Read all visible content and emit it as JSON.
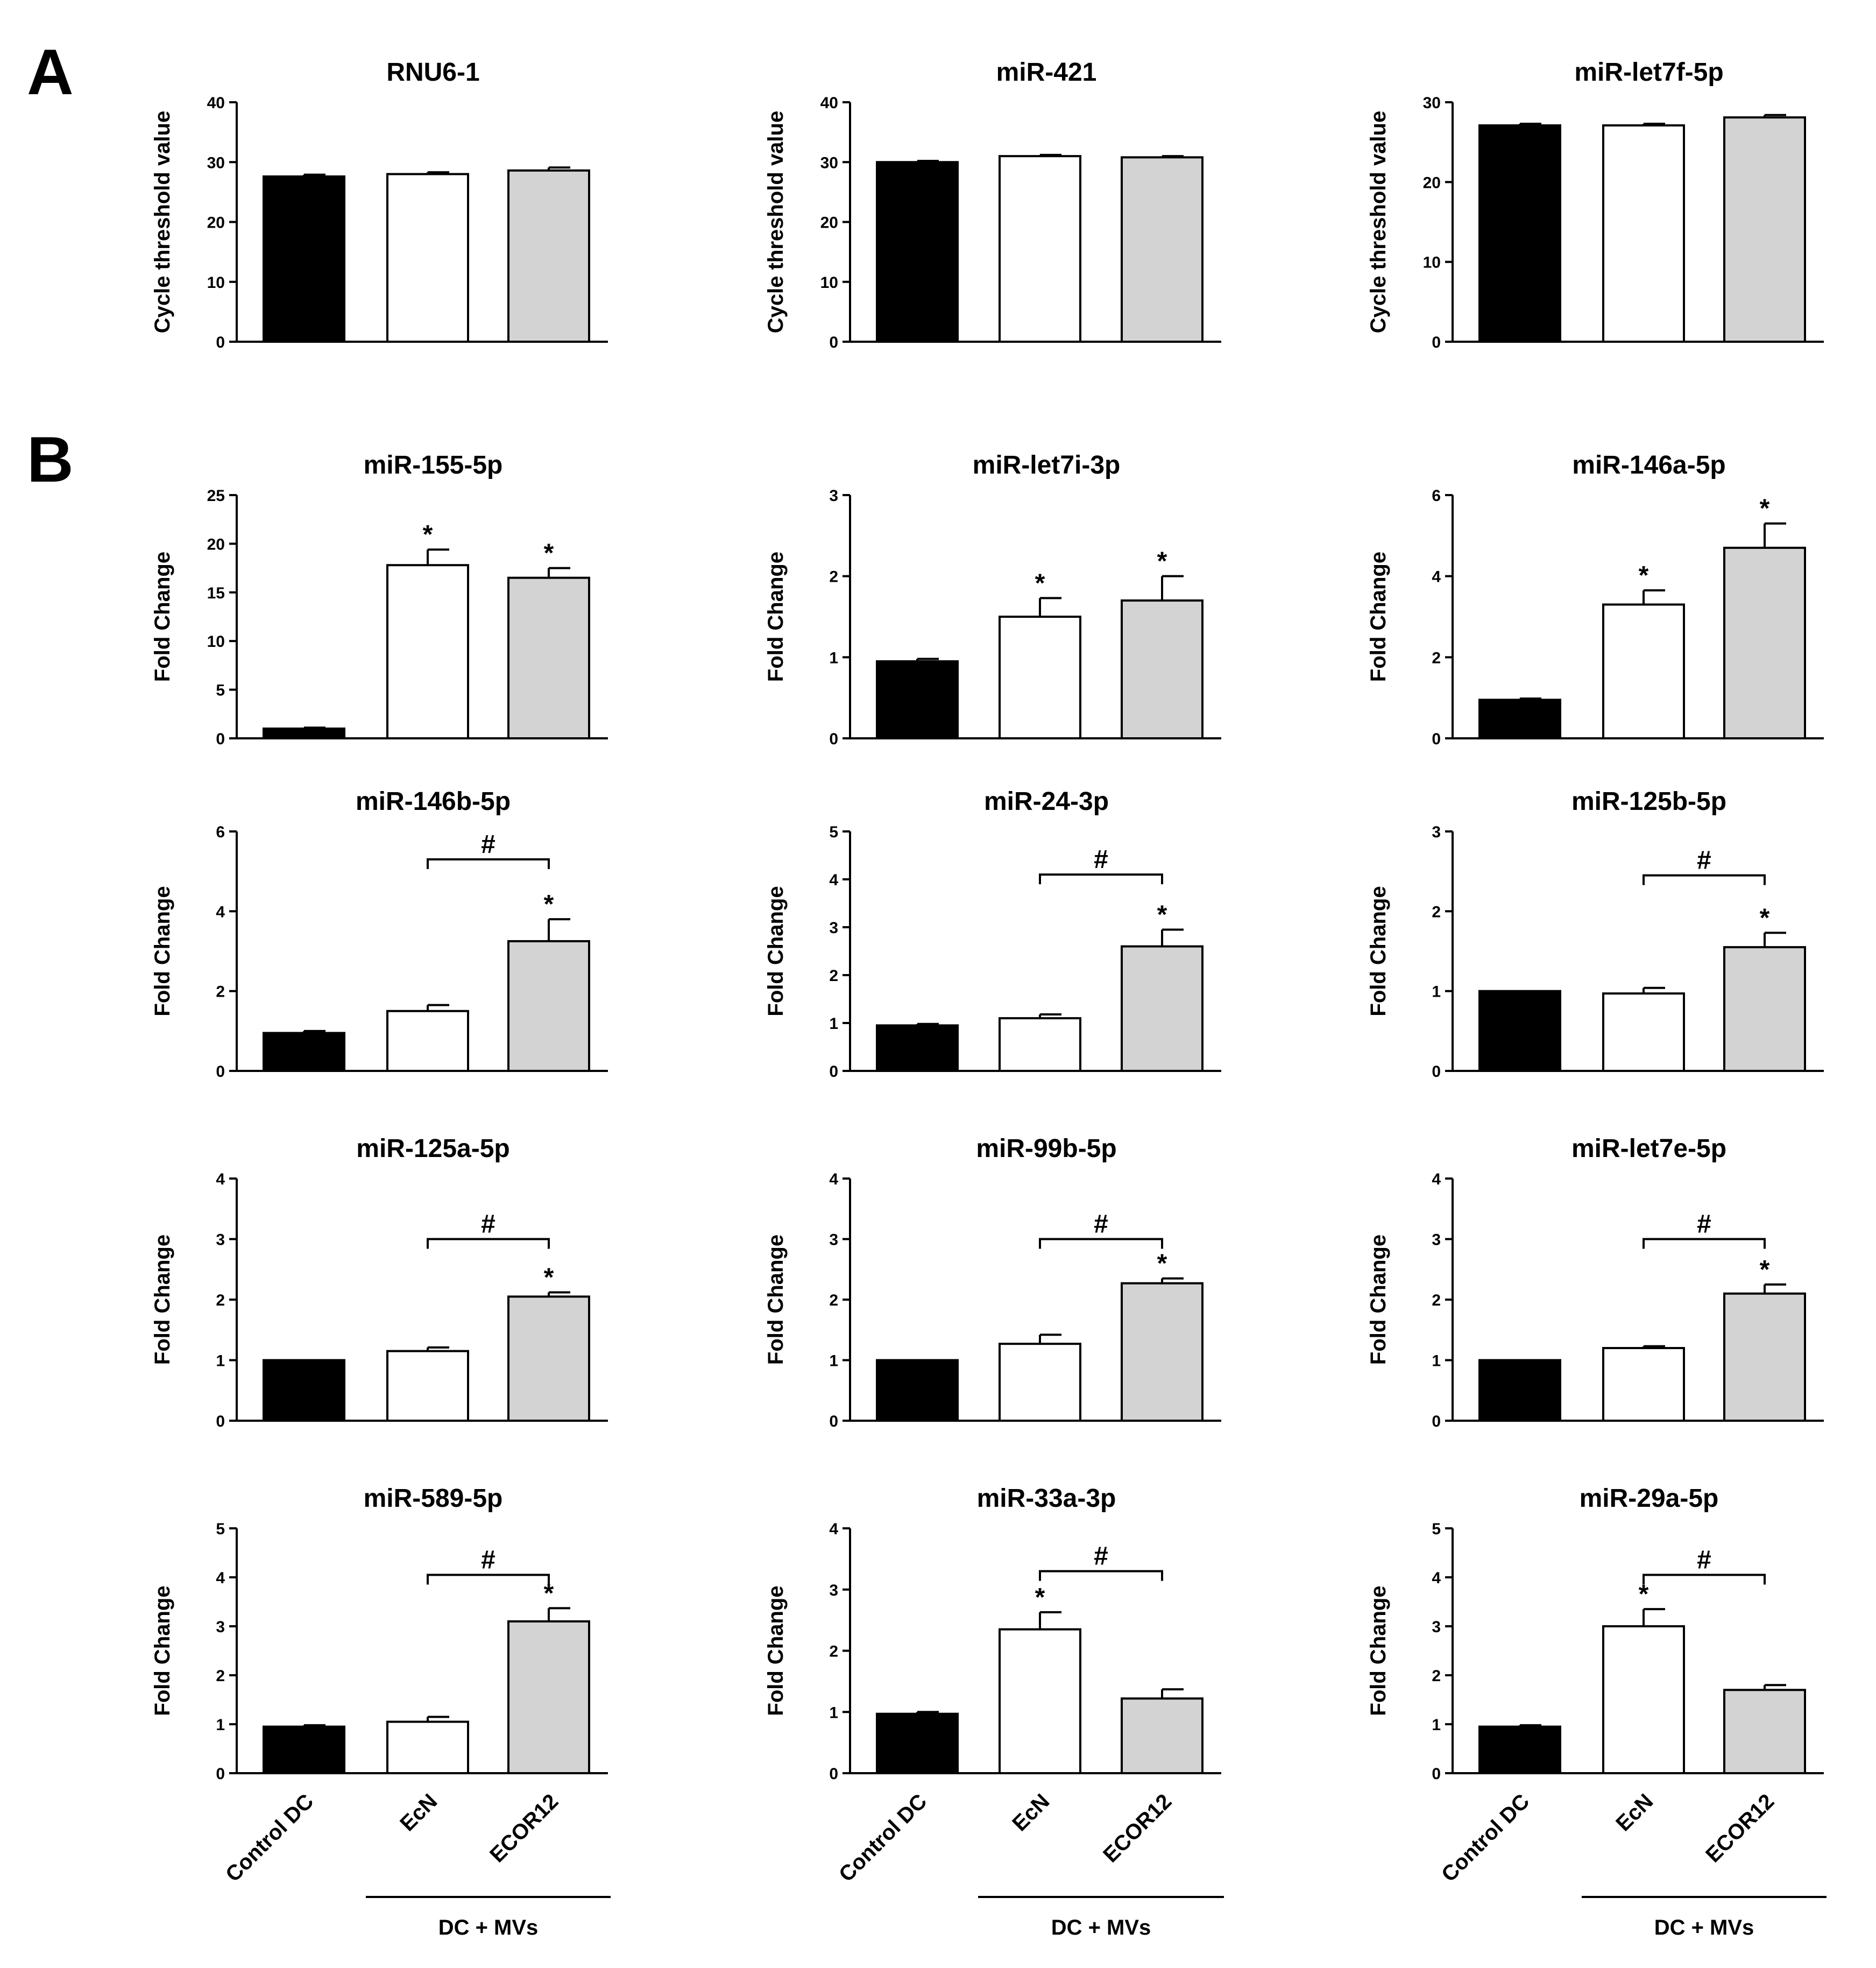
{
  "panel_labels": [
    "A",
    "B"
  ],
  "categories": [
    "Control DC",
    "EcN",
    "ECOR12"
  ],
  "group_label": "DC + MVs",
  "colors": {
    "control": "#000000",
    "ecn": "#ffffff",
    "ecor12": "#d3d3d3"
  },
  "chart_data": [
    {
      "type": "bar",
      "title": "RNU6-1",
      "ylabel": "Cycle threshold value",
      "categories": [
        "Control DC",
        "EcN",
        "ECOR12"
      ],
      "values": [
        27.6,
        28.0,
        28.6
      ],
      "errors": [
        0.3,
        0.3,
        0.5
      ],
      "ylim": [
        0,
        40
      ],
      "yticks": [
        0,
        10,
        20,
        30,
        40
      ],
      "sig": [],
      "bracket": null
    },
    {
      "type": "bar",
      "title": "miR-421",
      "ylabel": "Cycle threshold value",
      "categories": [
        "Control DC",
        "EcN",
        "ECOR12"
      ],
      "values": [
        30.0,
        31.0,
        30.8
      ],
      "errors": [
        0.2,
        0.2,
        0.2
      ],
      "ylim": [
        0,
        40
      ],
      "yticks": [
        0,
        10,
        20,
        30,
        40
      ],
      "sig": [],
      "bracket": null
    },
    {
      "type": "bar",
      "title": "miR-let7f-5p",
      "ylabel": "Cycle threshold value",
      "categories": [
        "Control DC",
        "EcN",
        "ECOR12"
      ],
      "values": [
        27.1,
        27.1,
        28.1
      ],
      "errors": [
        0.2,
        0.2,
        0.3
      ],
      "ylim": [
        0,
        30
      ],
      "yticks": [
        0,
        10,
        20,
        30
      ],
      "sig": [],
      "bracket": null
    },
    {
      "type": "bar",
      "title": "miR-155-5p",
      "ylabel": "Fold Change",
      "categories": [
        "Control DC",
        "EcN",
        "ECOR12"
      ],
      "values": [
        1.0,
        17.8,
        16.5
      ],
      "errors": [
        0.1,
        1.6,
        1.0
      ],
      "ylim": [
        0,
        25
      ],
      "yticks": [
        0,
        5,
        10,
        15,
        20,
        25
      ],
      "sig": [
        "",
        "*",
        "*"
      ],
      "bracket": null
    },
    {
      "type": "bar",
      "title": "miR-let7i-3p",
      "ylabel": "Fold Change",
      "categories": [
        "Control DC",
        "EcN",
        "ECOR12"
      ],
      "values": [
        0.95,
        1.5,
        1.7
      ],
      "errors": [
        0.03,
        0.23,
        0.3
      ],
      "ylim": [
        0,
        3
      ],
      "yticks": [
        0,
        1,
        2,
        3
      ],
      "sig": [
        "",
        "*",
        "*"
      ],
      "bracket": null
    },
    {
      "type": "bar",
      "title": "miR-146a-5p",
      "ylabel": "Fold Change",
      "categories": [
        "Control DC",
        "EcN",
        "ECOR12"
      ],
      "values": [
        0.95,
        3.3,
        4.7
      ],
      "errors": [
        0.03,
        0.35,
        0.6
      ],
      "ylim": [
        0,
        6
      ],
      "yticks": [
        0,
        2,
        4,
        6
      ],
      "sig": [
        "",
        "*",
        "*"
      ],
      "bracket": null
    },
    {
      "type": "bar",
      "title": "miR-146b-5p",
      "ylabel": "Fold Change",
      "categories": [
        "Control DC",
        "EcN",
        "ECOR12"
      ],
      "values": [
        0.95,
        1.5,
        3.25
      ],
      "errors": [
        0.05,
        0.15,
        0.55
      ],
      "ylim": [
        0,
        6
      ],
      "yticks": [
        0,
        2,
        4,
        6
      ],
      "sig": [
        "",
        "",
        "*"
      ],
      "bracket": {
        "label": "#",
        "y": 5.3
      }
    },
    {
      "type": "bar",
      "title": "miR-24-3p",
      "ylabel": "Fold Change",
      "categories": [
        "Control DC",
        "EcN",
        "ECOR12"
      ],
      "values": [
        0.95,
        1.1,
        2.6
      ],
      "errors": [
        0.03,
        0.08,
        0.35
      ],
      "ylim": [
        0,
        5
      ],
      "yticks": [
        0,
        1,
        2,
        3,
        4,
        5
      ],
      "sig": [
        "",
        "",
        "*"
      ],
      "bracket": {
        "label": "#",
        "y": 4.1
      }
    },
    {
      "type": "bar",
      "title": "miR-125b-5p",
      "ylabel": "Fold Change",
      "categories": [
        "Control DC",
        "EcN",
        "ECOR12"
      ],
      "values": [
        1.0,
        0.97,
        1.55
      ],
      "errors": [
        0.0,
        0.07,
        0.18
      ],
      "ylim": [
        0,
        3
      ],
      "yticks": [
        0,
        1,
        2,
        3
      ],
      "sig": [
        "",
        "",
        "*"
      ],
      "bracket": {
        "label": "#",
        "y": 2.45
      }
    },
    {
      "type": "bar",
      "title": "miR-125a-5p",
      "ylabel": "Fold Change",
      "categories": [
        "Control DC",
        "EcN",
        "ECOR12"
      ],
      "values": [
        1.0,
        1.15,
        2.05
      ],
      "errors": [
        0.0,
        0.06,
        0.07
      ],
      "ylim": [
        0,
        4
      ],
      "yticks": [
        0,
        1,
        2,
        3,
        4
      ],
      "sig": [
        "",
        "",
        "*"
      ],
      "bracket": {
        "label": "#",
        "y": 3.0
      }
    },
    {
      "type": "bar",
      "title": "miR-99b-5p",
      "ylabel": "Fold Change",
      "categories": [
        "Control DC",
        "EcN",
        "ECOR12"
      ],
      "values": [
        1.0,
        1.27,
        2.27
      ],
      "errors": [
        0.0,
        0.15,
        0.08
      ],
      "ylim": [
        0,
        4
      ],
      "yticks": [
        0,
        1,
        2,
        3,
        4
      ],
      "sig": [
        "",
        "",
        "*"
      ],
      "bracket": {
        "label": "#",
        "y": 3.0
      }
    },
    {
      "type": "bar",
      "title": "miR-let7e-5p",
      "ylabel": "Fold Change",
      "categories": [
        "Control DC",
        "EcN",
        "ECOR12"
      ],
      "values": [
        1.0,
        1.2,
        2.1
      ],
      "errors": [
        0.0,
        0.03,
        0.15
      ],
      "ylim": [
        0,
        4
      ],
      "yticks": [
        0,
        1,
        2,
        3,
        4
      ],
      "sig": [
        "",
        "",
        "*"
      ],
      "bracket": {
        "label": "#",
        "y": 3.0
      }
    },
    {
      "type": "bar",
      "title": "miR-589-5p",
      "ylabel": "Fold Change",
      "categories": [
        "Control DC",
        "EcN",
        "ECOR12"
      ],
      "values": [
        0.95,
        1.05,
        3.1
      ],
      "errors": [
        0.03,
        0.1,
        0.27
      ],
      "ylim": [
        0,
        5
      ],
      "yticks": [
        0,
        1,
        2,
        3,
        4,
        5
      ],
      "sig": [
        "",
        "",
        "*"
      ],
      "bracket": {
        "label": "#",
        "y": 4.05
      }
    },
    {
      "type": "bar",
      "title": "miR-33a-3p",
      "ylabel": "Fold Change",
      "categories": [
        "Control DC",
        "EcN",
        "ECOR12"
      ],
      "values": [
        0.97,
        2.35,
        1.22
      ],
      "errors": [
        0.03,
        0.28,
        0.15
      ],
      "ylim": [
        0,
        4
      ],
      "yticks": [
        0,
        1,
        2,
        3,
        4
      ],
      "sig": [
        "",
        "*",
        ""
      ],
      "bracket": {
        "label": "#",
        "y": 3.3
      }
    },
    {
      "type": "bar",
      "title": "miR-29a-5p",
      "ylabel": "Fold Change",
      "categories": [
        "Control DC",
        "EcN",
        "ECOR12"
      ],
      "values": [
        0.95,
        3.0,
        1.7
      ],
      "errors": [
        0.03,
        0.35,
        0.1
      ],
      "ylim": [
        0,
        5
      ],
      "yticks": [
        0,
        1,
        2,
        3,
        4,
        5
      ],
      "sig": [
        "",
        "*",
        ""
      ],
      "bracket": {
        "label": "#",
        "y": 4.05
      }
    }
  ]
}
